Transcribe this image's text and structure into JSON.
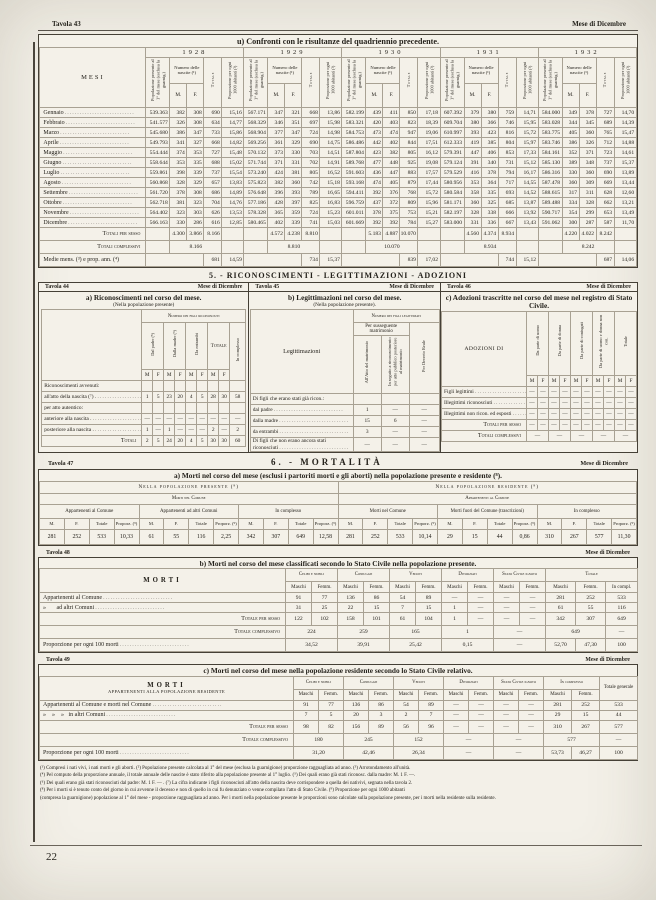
{
  "page": {
    "tavola": "Tavola 43",
    "mese": "Mese di Dicembre",
    "number": "22"
  },
  "t43": {
    "title": "u) Confronti con le risultanze del quadriennio precedente.",
    "mesi_label": "MESI",
    "years": [
      "1928",
      "1929",
      "1930",
      "1931",
      "1932"
    ],
    "headers": {
      "pop": "Popolazione presente al 1° del mese (esclusa la guarnig.)",
      "nascite": "Numero delle nascite (¹)",
      "m": "M.",
      "f": "F.",
      "totale": "Totale",
      "prop": "Proporzione per ogni 1000 abitanti (²)"
    },
    "rows": [
      {
        "mese": "Gennaio",
        "y": [
          [
            "539.363",
            "382",
            "308",
            "690",
            "15,16"
          ],
          [
            "567.171",
            "347",
            "321",
            "668",
            "13,86"
          ],
          [
            "582.199",
            "439",
            "411",
            "850",
            "17,18"
          ],
          [
            "607.392",
            "379",
            "380",
            "759",
            "14,71"
          ],
          [
            "584.000",
            "349",
            "378",
            "727",
            "14,70"
          ]
        ]
      },
      {
        "mese": "Febbraio",
        "y": [
          [
            "541.577",
            "326",
            "308",
            "634",
            "14,77"
          ],
          [
            "568.329",
            "346",
            "351",
            "697",
            "15,98"
          ],
          [
            "583.321",
            "420",
            "403",
            "823",
            "18,39"
          ],
          [
            "609.704",
            "380",
            "366",
            "746",
            "15,95"
          ],
          [
            "583.028",
            "344",
            "345",
            "689",
            "14,39"
          ]
        ]
      },
      {
        "mese": "Marzo",
        "y": [
          [
            "545.680",
            "386",
            "347",
            "733",
            "15,86"
          ],
          [
            "568.904",
            "377",
            "347",
            "724",
            "14,98"
          ],
          [
            "584.753",
            "473",
            "474",
            "947",
            "19,06"
          ],
          [
            "610.997",
            "393",
            "423",
            "816",
            "15,72"
          ],
          [
            "583.775",
            "405",
            "360",
            "765",
            "15,47"
          ]
        ]
      },
      {
        "mese": "Aprile",
        "y": [
          [
            "549.793",
            "341",
            "327",
            "668",
            "14,82"
          ],
          [
            "569.256",
            "361",
            "329",
            "690",
            "14,75"
          ],
          [
            "586.486",
            "442",
            "402",
            "844",
            "17,51"
          ],
          [
            "612.333",
            "419",
            "385",
            "804",
            "15,97"
          ],
          [
            "583.746",
            "386",
            "326",
            "712",
            "14,88"
          ]
        ]
      },
      {
        "mese": "Maggio",
        "y": [
          [
            "554.444",
            "374",
            "353",
            "727",
            "15,48"
          ],
          [
            "570.132",
            "373",
            "330",
            "703",
            "14,51"
          ],
          [
            "587.804",
            "423",
            "382",
            "805",
            "16,12"
          ],
          [
            "579.391",
            "447",
            "406",
            "853",
            "17,33"
          ],
          [
            "584.161",
            "352",
            "371",
            "723",
            "14,61"
          ]
        ]
      },
      {
        "mese": "Giugno",
        "y": [
          [
            "558.644",
            "353",
            "335",
            "688",
            "15,02"
          ],
          [
            "571.744",
            "371",
            "331",
            "702",
            "14,91"
          ],
          [
            "589.768",
            "477",
            "448",
            "925",
            "19,08"
          ],
          [
            "579.124",
            "391",
            "340",
            "731",
            "15,12"
          ],
          [
            "585.130",
            "389",
            "348",
            "737",
            "15,37"
          ]
        ]
      },
      {
        "mese": "Luglio",
        "y": [
          [
            "559.861",
            "398",
            "339",
            "737",
            "15,54"
          ],
          [
            "573.240",
            "424",
            "381",
            "805",
            "16,52"
          ],
          [
            "591.603",
            "436",
            "447",
            "883",
            "17,57"
          ],
          [
            "579.529",
            "416",
            "378",
            "794",
            "16,17"
          ],
          [
            "586.316",
            "330",
            "360",
            "690",
            "13,89"
          ]
        ]
      },
      {
        "mese": "Agosto",
        "y": [
          [
            "560.868",
            "328",
            "329",
            "657",
            "13,83"
          ],
          [
            "575.823",
            "382",
            "360",
            "742",
            "15,18"
          ],
          [
            "593.168",
            "474",
            "405",
            "879",
            "17,44"
          ],
          [
            "580.956",
            "353",
            "364",
            "717",
            "14,55"
          ],
          [
            "587.478",
            "360",
            "309",
            "669",
            "13,44"
          ]
        ]
      },
      {
        "mese": "Settembre",
        "y": [
          [
            "561.720",
            "378",
            "308",
            "686",
            "14,89"
          ],
          [
            "576.648",
            "396",
            "393",
            "789",
            "16,65"
          ],
          [
            "594.411",
            "392",
            "376",
            "768",
            "15,72"
          ],
          [
            "580.584",
            "358",
            "335",
            "693",
            "14,52"
          ],
          [
            "588.615",
            "317",
            "311",
            "628",
            "12,60"
          ]
        ]
      },
      {
        "mese": "Ottobre",
        "y": [
          [
            "562.718",
            "381",
            "323",
            "704",
            "14,76"
          ],
          [
            "577.186",
            "428",
            "397",
            "825",
            "16,83"
          ],
          [
            "596.759",
            "437",
            "372",
            "809",
            "15,96"
          ],
          [
            "581.171",
            "360",
            "325",
            "685",
            "13,87"
          ],
          [
            "589.488",
            "334",
            "328",
            "662",
            "13,21"
          ]
        ]
      },
      {
        "mese": "Novembre",
        "y": [
          [
            "564.402",
            "323",
            "303",
            "626",
            "13,53"
          ],
          [
            "578.328",
            "365",
            "359",
            "724",
            "15,23"
          ],
          [
            "601.011",
            "378",
            "375",
            "753",
            "15,21"
          ],
          [
            "582.197",
            "328",
            "338",
            "666",
            "13,92"
          ],
          [
            "590.717",
            "354",
            "299",
            "653",
            "13,49"
          ]
        ]
      },
      {
        "mese": "Dicembre",
        "y": [
          [
            "566.163",
            "330",
            "286",
            "616",
            "12,85"
          ],
          [
            "580.465",
            "402",
            "339",
            "741",
            "15,03"
          ],
          [
            "601.669",
            "392",
            "392",
            "784",
            "15,27"
          ],
          [
            "583.000",
            "331",
            "336",
            "667",
            "13,43"
          ],
          [
            "591.062",
            "300",
            "287",
            "587",
            "11,70"
          ]
        ]
      }
    ],
    "labels": {
      "sesso": "Totali per sesso",
      "compl": "Totali complessivi",
      "medie": "Medie mens. (³) e prop. ann. (⁴)"
    },
    "totali_sesso": [
      [
        "4.300",
        "3.866",
        "8.166"
      ],
      [
        "4.572",
        "4.238",
        "8.810"
      ],
      [
        "5.183",
        "4.887",
        "10.070"
      ],
      [
        "4.560",
        "4.374",
        "8.934"
      ],
      [
        "4.220",
        "4.022",
        "8.242"
      ]
    ],
    "totali_compl": [
      "8.166",
      "8.810",
      "10.070",
      "8.934",
      "8.242"
    ],
    "medie": [
      [
        "681",
        "14,59"
      ],
      [
        "734",
        "15,37"
      ],
      [
        "839",
        "17,02"
      ],
      [
        "744",
        "15,12"
      ],
      [
        "687",
        "14,06"
      ]
    ]
  },
  "s5": {
    "heading": "5. - RICONOSCIMENTI - LEGITTIMAZIONI - ADOZIONI"
  },
  "t44": {
    "tavola": "Tavola 44",
    "mese": "Mese di Dicembre",
    "title": "a) Riconoscimenti nel corso del mese.",
    "subtitle": "(Nella popolazione presente)",
    "group": "Numero dei figli riconosciuti",
    "cols": [
      "Dal padre (⁵)",
      "Dalla madre (⁶)",
      "Da entrambi",
      "Totale"
    ],
    "incompl": "In complesso",
    "mf": [
      "M",
      "F"
    ],
    "rows": [
      {
        "label": "Riconoscimenti avvenuti:",
        "indent": 0,
        "cells": null
      },
      {
        "label": "all'atto della nascita (⁷) .",
        "indent": 1,
        "cells": [
          "1",
          "5",
          "23",
          "20",
          "4",
          "5",
          "28",
          "30",
          "58"
        ]
      },
      {
        "label": "per atto autentico:",
        "indent": 1,
        "cells": null
      },
      {
        "label": "anteriore alla nascita .",
        "indent": 2,
        "cells": [
          "—",
          "—",
          "—",
          "—",
          "—",
          "—",
          "—",
          "—",
          "—"
        ]
      },
      {
        "label": "posteriore alla nascita .",
        "indent": 2,
        "cells": [
          "1",
          "—",
          "1",
          "—",
          "—",
          "—",
          "2",
          "—",
          "2"
        ]
      }
    ],
    "totali": {
      "label": "Totali",
      "cells": [
        "2",
        "5",
        "24",
        "20",
        "4",
        "5",
        "30",
        "30",
        "60"
      ]
    }
  },
  "t45": {
    "tavola": "Tavola 45",
    "mese": "Mese di Dicembre",
    "title": "b) Legittimazioni nel corso del mese.",
    "subtitle": "(Nella popolazione presente).",
    "side": "Legittimazioni",
    "group": "Numero dei figli legittimati",
    "subgroup": "Per susseguente matrimonio",
    "cols": [
      "All'Atto del matrimonio",
      "In seguito a riconoscimento per atto pubblico posteriore al matrimonio",
      "Per Decreto Reale"
    ],
    "rows": [
      {
        "label": "Di figli che erano stati già ricon.:",
        "cells": null
      },
      {
        "label": "dal padre",
        "indent": 1,
        "cells": [
          "1",
          "—",
          "—"
        ]
      },
      {
        "label": "dalla madre",
        "indent": 1,
        "cells": [
          "15",
          "6",
          "—"
        ]
      },
      {
        "label": "da entrambi",
        "indent": 1,
        "cells": [
          "3",
          "—",
          "—"
        ]
      },
      {
        "label": "Di figli che non erano ancora stati riconosciuti",
        "wrap": true,
        "cells": [
          "—",
          "—",
          "—"
        ]
      }
    ]
  },
  "t46": {
    "tavola": "Tavola 46",
    "mese": "Mese di Dicembre",
    "title": "c) Adozioni trascritte nel corso del mese nel registro di Stato Civile.",
    "side": "ADOZIONI DI",
    "cols": [
      "Da parte di uomo",
      "Da parte di donna",
      "Da parte di coniugati",
      "Da parte di uomo e donna non con.",
      "Totale"
    ],
    "mf": [
      "M",
      "F"
    ],
    "rows": [
      {
        "label": "Figli legittimi",
        "cells": [
          "—",
          "—",
          "—",
          "—",
          "—",
          "—",
          "—",
          "—",
          "—",
          "—"
        ]
      },
      {
        "label": "Illegittimi riconosciuti",
        "cells": [
          "—",
          "—",
          "—",
          "—",
          "—",
          "—",
          "—",
          "—",
          "—",
          "—"
        ]
      },
      {
        "label": "Illegittimi non ricon. ed esposti",
        "cells": [
          "—",
          "—",
          "—",
          "—",
          "—",
          "—",
          "—",
          "—",
          "—",
          "—"
        ]
      }
    ],
    "tot_sesso": {
      "label": "Totali per sesso",
      "cells": [
        "—",
        "—",
        "—",
        "—",
        "—",
        "—",
        "—",
        "—",
        "—",
        "—"
      ]
    },
    "tot_compl": {
      "label": "Totali complessivi",
      "cells": [
        "—",
        "—",
        "—",
        "—",
        "—"
      ]
    }
  },
  "s6": {
    "tavola": "Tavola 47",
    "heading": "6. - MORTALITÀ",
    "mese": "Mese di Dicembre"
  },
  "t47": {
    "title": "a) Morti nel corso del mese (esclusi i partoriti morti e gli aborti) nella popolazione presente e residente (⁸).",
    "halves": [
      "Nella popolazione presente (⁹)",
      "Nella popolazione residente (⁹)"
    ],
    "subs": [
      "Morti nel Comune",
      "Appartenenti al Comune"
    ],
    "groups": [
      "Appartenenti al Comune",
      "Appartenenti ad altri Comuni",
      "In complesso",
      "Morti nel Comune",
      "Morti fuori del Comune (trascrizioni)",
      "In complesso"
    ],
    "cols": [
      "M.",
      "F.",
      "Totale",
      "Proporz. (⁹)"
    ],
    "values": [
      [
        "281",
        "252",
        "533",
        "10,33"
      ],
      [
        "61",
        "55",
        "116",
        "2,25"
      ],
      [
        "342",
        "307",
        "649",
        "12,58"
      ],
      [
        "281",
        "252",
        "533",
        "10,14"
      ],
      [
        "29",
        "15",
        "44",
        "0,86"
      ],
      [
        "310",
        "267",
        "577",
        "11,30"
      ]
    ]
  },
  "t48": {
    "tavola": "Tavola 48",
    "mese": "Mese di Dicembre",
    "title": "b) Morti nel corso del mese classificati secondo lo Stato Civile nella popolazione presente.",
    "side": "MORTI",
    "side2": "",
    "groups": [
      "Celibi e nubili",
      "Coniugati",
      "Vedovi",
      "Divorziati",
      "Stato Civile ignoto"
    ],
    "tot_group": "Totale",
    "mf": [
      "Maschi",
      "Femm."
    ],
    "incompl": "In compl.",
    "rows": [
      {
        "label": "Appartenenti al Comune",
        "cells": [
          "91",
          "77",
          "136",
          "86",
          "54",
          "89",
          "—",
          "—",
          "—",
          "—",
          "281",
          "252",
          "533"
        ]
      },
      {
        "label": "»       ad altri Comuni",
        "cells": [
          "31",
          "25",
          "22",
          "15",
          "7",
          "15",
          "1",
          "—",
          "—",
          "—",
          "61",
          "55",
          "116"
        ]
      }
    ],
    "tot_sesso": {
      "label": "Totale per sesso",
      "cells": [
        "122",
        "102",
        "158",
        "101",
        "61",
        "104",
        "1",
        "—",
        "—",
        "—",
        "342",
        "307",
        "649"
      ]
    },
    "tot_compl": {
      "label": "Totale complessivo",
      "cells": [
        "224",
        "259",
        "165",
        "1",
        "—",
        "649",
        "—"
      ]
    },
    "prop": {
      "label": "Proporzione per ogni 100 morti",
      "cells": [
        "34,52",
        "39,91",
        "25,42",
        "0,15",
        "—",
        "52,70",
        "47,30",
        "100"
      ]
    }
  },
  "t49": {
    "tavola": "Tavola 49",
    "mese": "Mese di Dicembre",
    "title": "c) Morti nel corso del mese nella popolazione residente secondo lo Stato Civile relativo.",
    "side": "MORTI",
    "side2": "APPARTENENTI ALLA POPOLAZIONE RESIDENTE",
    "groups": [
      "Celibi e nubili",
      "Coniugati",
      "Vedovi",
      "Divorziati",
      "Stato Civile ignoto"
    ],
    "incompl_group": "In complesso",
    "totgen": "Totale generale",
    "mf": [
      "Maschi",
      "Femm."
    ],
    "rows": [
      {
        "label": "Appartenenti al Comune e morti nel Comune",
        "cells": [
          "91",
          "77",
          "136",
          "86",
          "54",
          "89",
          "—",
          "—",
          "—",
          "—",
          "281",
          "252",
          "533"
        ]
      },
      {
        "label": "»    »    »   in altri Comuni",
        "cells": [
          "7",
          "5",
          "20",
          "3",
          "2",
          "7",
          "—",
          "—",
          "—",
          "—",
          "29",
          "15",
          "44"
        ]
      }
    ],
    "tot_sesso": {
      "label": "Totale per sesso",
      "cells": [
        "98",
        "82",
        "156",
        "89",
        "56",
        "96",
        "—",
        "—",
        "—",
        "—",
        "310",
        "267",
        "577"
      ]
    },
    "tot_compl": {
      "label": "Totale complessivo",
      "cells": [
        "180",
        "245",
        "152",
        "—",
        "—",
        "577",
        "—"
      ]
    },
    "prop": {
      "label": "Proporzione per ogni 100 morti",
      "cells": [
        "31,20",
        "42,46",
        "26,34",
        "—",
        "—",
        "53,73",
        "46,27",
        "100"
      ]
    }
  },
  "footnotes": [
    "(¹) Compresi i nati vivi, i nati morti e gli aborti. (²) Popolazione presente calcolata al 1° del mese (esclusa la guarnigione) proporzione ragguagliata ad anno. (³) Arrotondamento all'unità.",
    "(⁴) Pel computo della proporzione annuale, il totale annuale delle nascite è stato riferito alla popolazione presente al 1° luglio. (⁵) Dei quali erano già stati riconosc. dalla madre: M. 1 F. —.",
    "(⁶) Dei quali erano già stati riconosciuti dal padre: M. 1 F. — . (⁷) La cifra indicante i figli riconosciuti all'atto della nascita deve corrispondere a quella dei nativivi, segnata nella tavola 2.",
    "(⁸) Per i morti si è tenuto conto del giorno in cui avvenne il decesso e non di quello in cui fu denunziato o venne compilato l'atto di Stato Civile. (⁹) Proporzione per ogni 1000 abitanti",
    "(compresa la guarnigione) popolazione al 1° del mese - proporzione ragguagliata ad anno. Per i morti nella popolazione presente le proporzioni sono calcolate sulla popolazione presente, per i morti nella residente sulla residente."
  ]
}
